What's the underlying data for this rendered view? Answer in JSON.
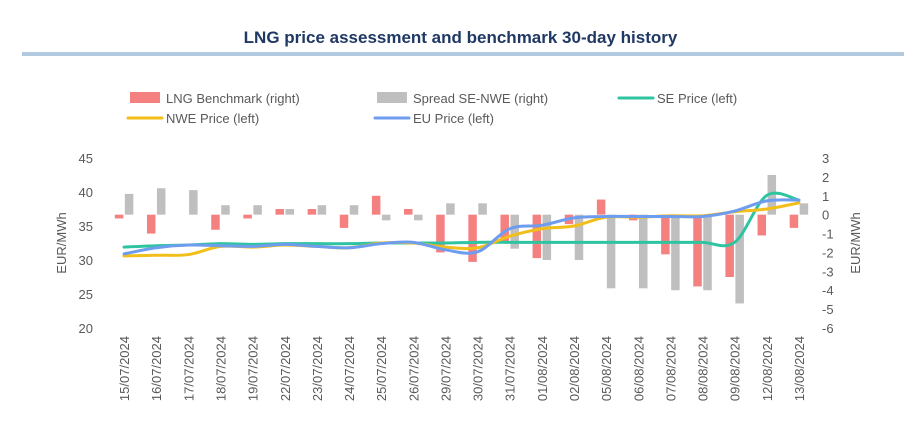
{
  "title": "LNG price assessment and benchmark 30-day history",
  "chart_data": {
    "type": "bar+line",
    "categories": [
      "15/07/2024",
      "16/07/2024",
      "17/07/2024",
      "18/07/2024",
      "19/07/2024",
      "22/07/2024",
      "23/07/2024",
      "24/07/2024",
      "25/07/2024",
      "26/07/2024",
      "29/07/2024",
      "30/07/2024",
      "31/07/2024",
      "01/08/2024",
      "02/08/2024",
      "05/08/2024",
      "06/08/2024",
      "07/08/2024",
      "08/08/2024",
      "09/08/2024",
      "12/08/2024",
      "13/08/2024"
    ],
    "left_axis": {
      "label": "EUR/MWh",
      "min": 20,
      "max": 45,
      "ticks": [
        20,
        25,
        30,
        35,
        40,
        45
      ]
    },
    "right_axis": {
      "label": "EUR/MWh",
      "min": -6,
      "max": 3,
      "ticks": [
        -6,
        -5,
        -4,
        -3,
        -2,
        -1,
        0,
        1,
        2,
        3
      ]
    },
    "bar_series": [
      {
        "name": "LNG Benchmark (right)",
        "color": "#f48080",
        "values": [
          -0.2,
          -1.0,
          0,
          -0.8,
          -0.2,
          0.3,
          0.3,
          -0.7,
          1.0,
          0.3,
          -2.0,
          -2.5,
          -1.5,
          -2.3,
          -0.5,
          0.8,
          -0.3,
          -2.1,
          -3.8,
          -3.3,
          -1.1,
          -0.7
        ]
      },
      {
        "name": "Spread SE-NWE (right)",
        "color": "#bfbfbf",
        "values": [
          1.1,
          1.4,
          1.3,
          0.5,
          0.5,
          0.3,
          0.5,
          0.5,
          -0.3,
          -0.3,
          0.6,
          0.6,
          -1.8,
          -2.4,
          -2.4,
          -3.9,
          -3.9,
          -4.0,
          -4.0,
          -4.7,
          2.1,
          0.6
        ]
      }
    ],
    "line_series": [
      {
        "name": "SE Price (left)",
        "color": "#2fc4a0",
        "values": [
          31.9,
          32.1,
          32.2,
          32.4,
          32.3,
          32.4,
          32.4,
          32.4,
          32.5,
          32.5,
          32.5,
          32.6,
          32.6,
          32.6,
          32.6,
          32.6,
          32.6,
          32.6,
          32.6,
          32.6,
          39.5,
          38.8
        ]
      },
      {
        "name": "NWE Price (left)",
        "color": "#f2be1a",
        "values": [
          30.6,
          30.7,
          30.8,
          32.0,
          31.9,
          32.2,
          32.0,
          31.8,
          32.5,
          32.5,
          31.9,
          31.8,
          33.5,
          34.6,
          35.0,
          36.3,
          36.3,
          36.5,
          36.5,
          37.1,
          37.5,
          38.4
        ]
      },
      {
        "name": "EU Price (left)",
        "color": "#6e9df0",
        "values": [
          30.9,
          31.8,
          32.2,
          32.1,
          32.0,
          32.3,
          32.0,
          31.8,
          32.4,
          32.6,
          31.5,
          31.2,
          34.6,
          35.1,
          36.2,
          36.4,
          36.4,
          36.4,
          36.4,
          37.2,
          38.7,
          38.8
        ]
      }
    ],
    "legend": {
      "placement": "top"
    }
  }
}
